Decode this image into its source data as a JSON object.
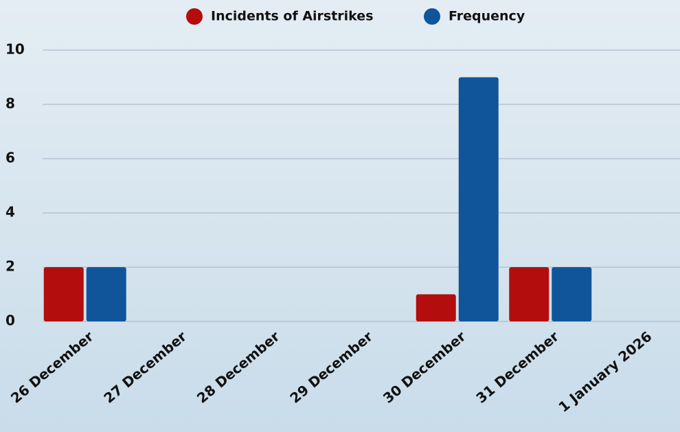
{
  "chart_data": {
    "type": "bar",
    "categories": [
      "26 December",
      "27 December",
      "28 December",
      "29 December",
      "30 December",
      "31 December",
      "1 January 2026"
    ],
    "series": [
      {
        "name": "Incidents of Airstrikes",
        "color": "#b30d0d",
        "values": [
          2,
          0,
          0,
          0,
          1,
          2,
          0
        ]
      },
      {
        "name": "Frequency",
        "color": "#10559a",
        "values": [
          2,
          0,
          0,
          0,
          9,
          2,
          0
        ]
      }
    ],
    "ylim": [
      0,
      10
    ],
    "yticks": [
      0,
      2,
      4,
      6,
      8,
      10
    ],
    "grid": true,
    "legend": "top"
  }
}
